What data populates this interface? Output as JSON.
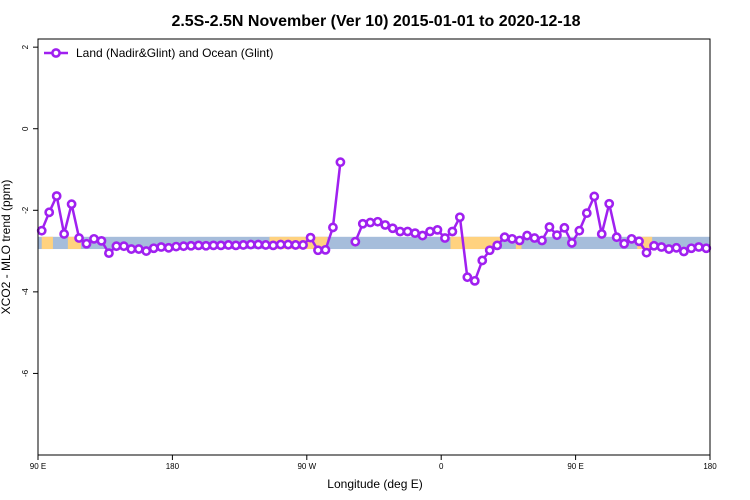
{
  "chart_data": {
    "type": "line",
    "title": "2.5S-2.5N November (Ver 10)   2015-01-01 to 2020-12-18",
    "xlabel": "Longitude (deg E)",
    "ylabel": "XCO2 - MLO trend (ppm)",
    "xlim": [
      90,
      450
    ],
    "ylim": [
      -8,
      2.2
    ],
    "x_ticks": [
      {
        "value": 90,
        "label": "90 E"
      },
      {
        "value": 162,
        "label": "180"
      },
      {
        "value": 234,
        "label": "90 W"
      },
      {
        "value": 306,
        "label": "0"
      },
      {
        "value": 378,
        "label": "90 E"
      },
      {
        "value": 450,
        "label": "180"
      }
    ],
    "y_ticks": [
      {
        "value": 2,
        "label": "2"
      },
      {
        "value": 0,
        "label": "0"
      },
      {
        "value": -2,
        "label": "-2"
      },
      {
        "value": -4,
        "label": "-4"
      },
      {
        "value": -6,
        "label": "-6"
      }
    ],
    "grid": false,
    "legend_position": "top-left",
    "colors": {
      "series": "#a020f0",
      "land_band": "#ffd27f",
      "ocean_band": "#a6bddb"
    },
    "band": {
      "y_range": [
        -2.95,
        -2.65
      ],
      "land_segments": [
        [
          92,
          98
        ],
        [
          106,
          113
        ],
        [
          214,
          245
        ],
        [
          311,
          338
        ],
        [
          346,
          349
        ],
        [
          411,
          419
        ]
      ]
    },
    "series": [
      {
        "name": "Land (Nadir&Glint) and Ocean (Glint)",
        "segments": [
          [
            [
              92,
              -2.5
            ],
            [
              96,
              -2.05
            ],
            [
              100,
              -1.65
            ],
            [
              104,
              -2.58
            ],
            [
              108,
              -1.85
            ],
            [
              112,
              -2.68
            ],
            [
              116,
              -2.82
            ],
            [
              120,
              -2.7
            ],
            [
              124,
              -2.75
            ],
            [
              128,
              -3.05
            ],
            [
              132,
              -2.88
            ],
            [
              136,
              -2.88
            ],
            [
              140,
              -2.95
            ],
            [
              144,
              -2.95
            ],
            [
              148,
              -3.0
            ],
            [
              152,
              -2.93
            ],
            [
              156,
              -2.9
            ],
            [
              160,
              -2.92
            ],
            [
              164,
              -2.89
            ],
            [
              168,
              -2.88
            ],
            [
              172,
              -2.87
            ],
            [
              176,
              -2.86
            ],
            [
              180,
              -2.87
            ],
            [
              184,
              -2.86
            ],
            [
              188,
              -2.86
            ],
            [
              192,
              -2.85
            ],
            [
              196,
              -2.86
            ],
            [
              200,
              -2.85
            ],
            [
              204,
              -2.84
            ],
            [
              208,
              -2.84
            ],
            [
              212,
              -2.85
            ],
            [
              216,
              -2.86
            ],
            [
              220,
              -2.84
            ],
            [
              224,
              -2.84
            ],
            [
              228,
              -2.85
            ],
            [
              232,
              -2.85
            ],
            [
              236,
              -2.67
            ],
            [
              240,
              -2.98
            ],
            [
              244,
              -2.97
            ],
            [
              248,
              -2.42
            ],
            [
              252,
              -0.82
            ]
          ],
          [
            [
              260,
              -2.77
            ],
            [
              264,
              -2.33
            ],
            [
              268,
              -2.3
            ],
            [
              272,
              -2.28
            ],
            [
              276,
              -2.36
            ],
            [
              280,
              -2.44
            ],
            [
              284,
              -2.52
            ],
            [
              288,
              -2.52
            ],
            [
              292,
              -2.56
            ],
            [
              296,
              -2.62
            ],
            [
              300,
              -2.52
            ],
            [
              304,
              -2.48
            ],
            [
              308,
              -2.68
            ],
            [
              312,
              -2.52
            ],
            [
              316,
              -2.17
            ],
            [
              320,
              -3.64
            ],
            [
              324,
              -3.73
            ],
            [
              328,
              -3.23
            ],
            [
              332,
              -2.98
            ],
            [
              336,
              -2.86
            ],
            [
              340,
              -2.66
            ],
            [
              344,
              -2.7
            ],
            [
              348,
              -2.74
            ],
            [
              352,
              -2.62
            ],
            [
              356,
              -2.68
            ],
            [
              360,
              -2.74
            ],
            [
              364,
              -2.41
            ],
            [
              368,
              -2.61
            ],
            [
              372,
              -2.43
            ],
            [
              376,
              -2.8
            ],
            [
              380,
              -2.5
            ],
            [
              384,
              -2.07
            ],
            [
              388,
              -1.66
            ],
            [
              392,
              -2.58
            ],
            [
              396,
              -1.84
            ],
            [
              400,
              -2.66
            ],
            [
              404,
              -2.82
            ],
            [
              408,
              -2.7
            ],
            [
              412,
              -2.76
            ],
            [
              416,
              -3.04
            ],
            [
              420,
              -2.87
            ],
            [
              424,
              -2.9
            ],
            [
              428,
              -2.95
            ],
            [
              432,
              -2.92
            ],
            [
              436,
              -3.01
            ],
            [
              440,
              -2.93
            ],
            [
              444,
              -2.9
            ],
            [
              448,
              -2.93
            ]
          ]
        ]
      }
    ]
  }
}
